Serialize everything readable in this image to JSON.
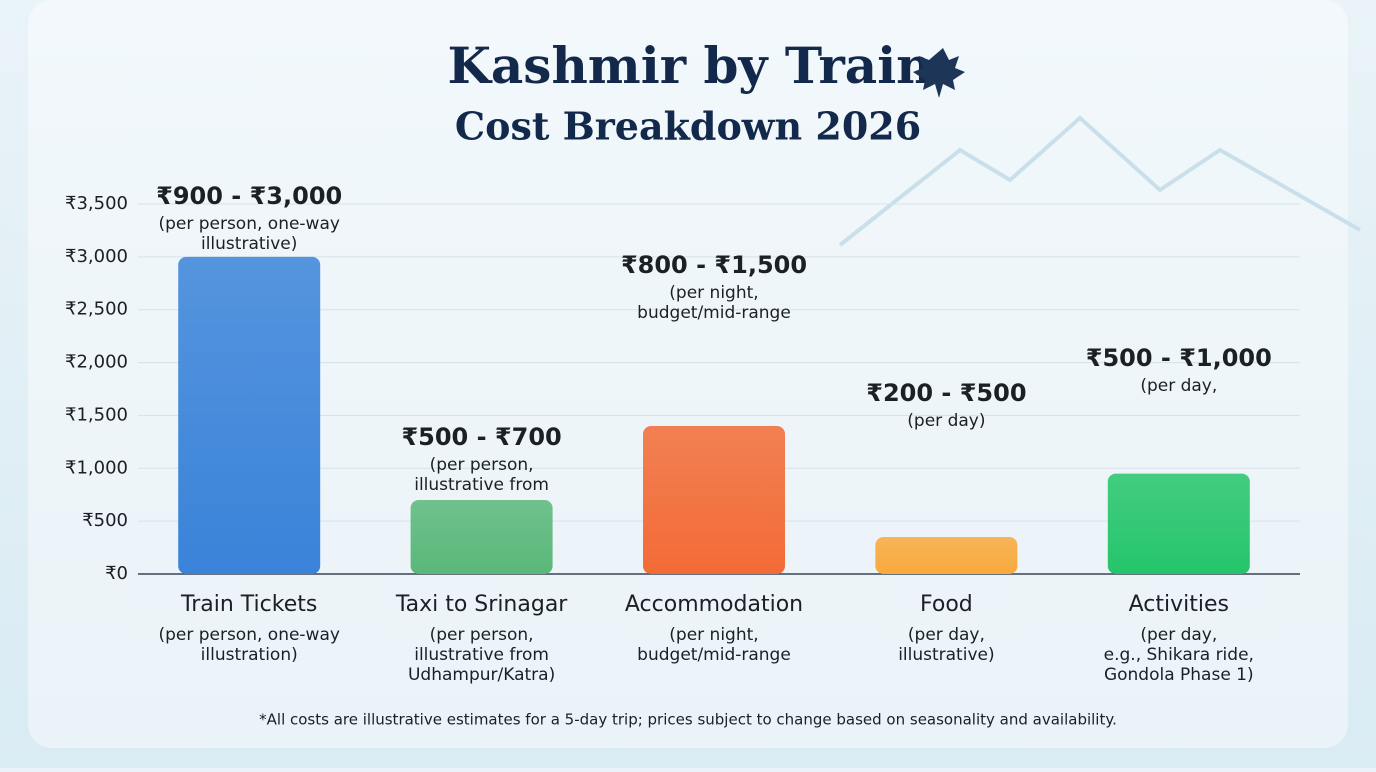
{
  "chart_data": {
    "type": "bar",
    "title": "Kashmir by Train",
    "subtitle": "Cost Breakdown 2026",
    "categories": [
      "Train Tickets",
      "Taxi to Srinagar",
      "Accommodation",
      "Food",
      "Activities"
    ],
    "category_notes": [
      [
        "(per person, one-way",
        "illustration)"
      ],
      [
        "(per person,",
        "illustrative from",
        "Udhampur/Katra)"
      ],
      [
        "(per night,",
        "budget/mid-range"
      ],
      [
        "(per day,",
        "illustrative)"
      ],
      [
        "(per day,",
        "e.g., Shikara ride,",
        "Gondola Phase 1)"
      ]
    ],
    "values": [
      3000,
      700,
      1400,
      350,
      950
    ],
    "range_labels": [
      "₹900 - ₹3,000",
      "₹500 - ₹700",
      "₹800 - ₹1,500",
      "₹200 - ₹500",
      "₹500 - ₹1,000"
    ],
    "range_notes": [
      [
        "(per person, one-way",
        "illustrative)"
      ],
      [
        "(per person,",
        "illustrative from"
      ],
      [
        "(per night,",
        "budget/mid-range"
      ],
      [
        "(per day)"
      ],
      [
        "(per day,"
      ]
    ],
    "colors": [
      "#3a83d9",
      "#5ab879",
      "#f36b36",
      "#f9a93c",
      "#25c56b"
    ],
    "ylim": [
      0,
      3500
    ],
    "yticks": [
      {
        "value": 0,
        "label": "₹0"
      },
      {
        "value": 500,
        "label": "₹500"
      },
      {
        "value": 1000,
        "label": "₹1,000"
      },
      {
        "value": 1500,
        "label": "₹1,500"
      },
      {
        "value": 2000,
        "label": "₹2,000"
      },
      {
        "value": 2500,
        "label": "₹2,500"
      },
      {
        "value": 3000,
        "label": "₹3,000"
      },
      {
        "value": 3500,
        "label": "₹3,500"
      }
    ],
    "grid": true,
    "footnote": "*All costs are illustrative estimates for a 5-day trip; prices subject to change based on seasonality and availability."
  }
}
